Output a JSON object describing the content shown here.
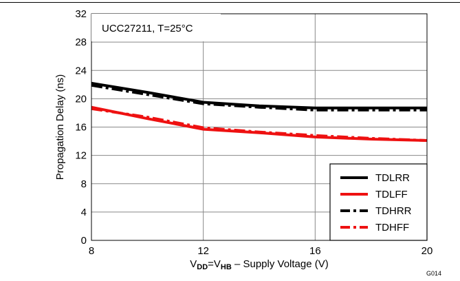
{
  "chart_data": {
    "type": "line",
    "annotation": "UCC27211, T=25°C",
    "xlabel": {
      "v1": "V",
      "s1": "DD",
      "eq": "=V",
      "s2": "HB",
      "rest": " – Supply Voltage (V)"
    },
    "ylabel": "Propagation Delay (ns)",
    "figure_code": "G014",
    "xlim": [
      8,
      20
    ],
    "ylim": [
      0,
      32
    ],
    "xticks": [
      8,
      12,
      16,
      20
    ],
    "yticks": [
      0,
      4,
      8,
      12,
      16,
      20,
      24,
      28,
      32
    ],
    "grid": true,
    "legend_position": "bottom-right",
    "series": [
      {
        "name": "TDLRR",
        "color": "#000000",
        "dash": "solid",
        "x": [
          8,
          10,
          12,
          14,
          16,
          18,
          20
        ],
        "y": [
          22.2,
          20.9,
          19.5,
          19.0,
          18.7,
          18.7,
          18.7
        ]
      },
      {
        "name": "TDLFF",
        "color": "#ee1111",
        "dash": "solid",
        "x": [
          8,
          10,
          12,
          14,
          16,
          18,
          20
        ],
        "y": [
          18.8,
          17.2,
          15.7,
          15.2,
          14.6,
          14.3,
          14.1
        ]
      },
      {
        "name": "TDHRR",
        "color": "#000000",
        "dash": "dashdot",
        "x": [
          8,
          10,
          12,
          14,
          16,
          18,
          20
        ],
        "y": [
          21.9,
          20.6,
          19.3,
          18.8,
          18.4,
          18.4,
          18.4
        ]
      },
      {
        "name": "TDHFF",
        "color": "#ee1111",
        "dash": "dashdot",
        "x": [
          8,
          10,
          12,
          14,
          16,
          18,
          20
        ],
        "y": [
          18.6,
          17.4,
          15.9,
          15.3,
          14.8,
          14.4,
          14.1
        ]
      }
    ]
  }
}
